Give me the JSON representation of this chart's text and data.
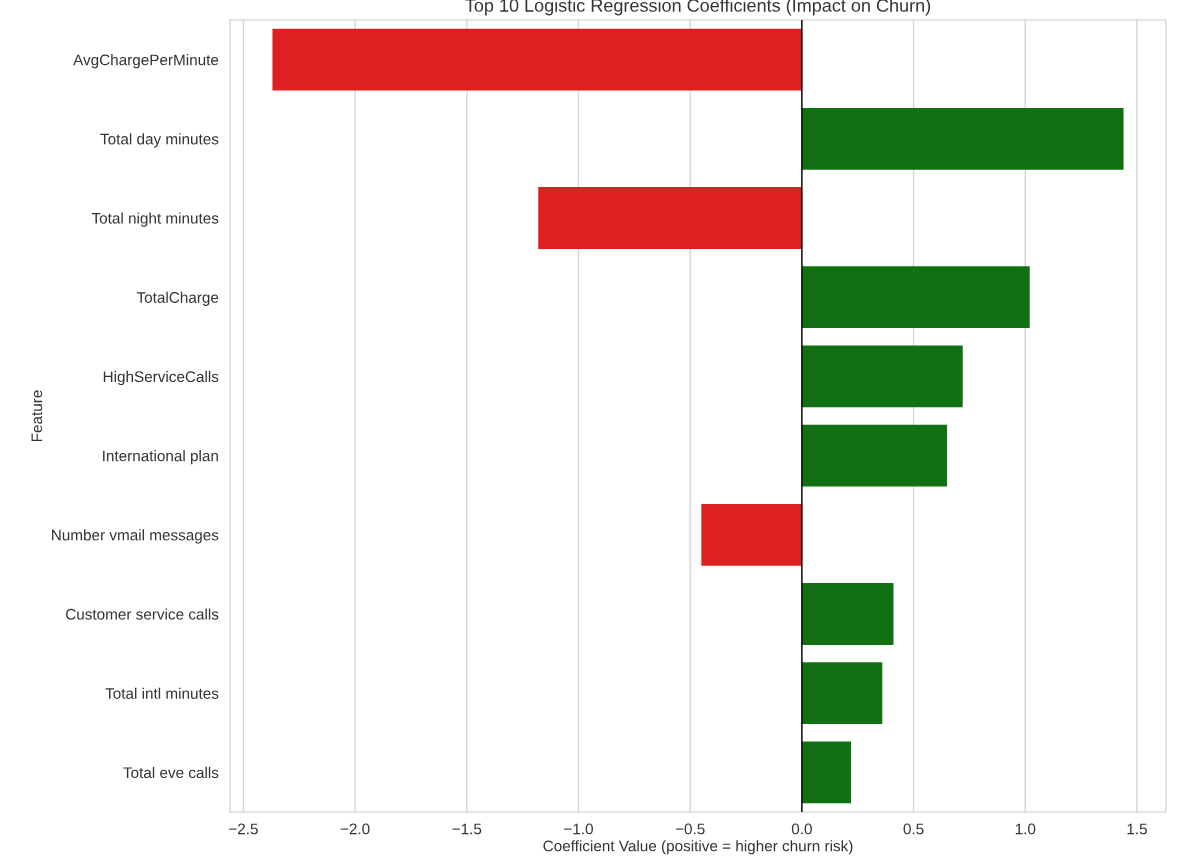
{
  "chart_data": {
    "type": "bar",
    "orientation": "horizontal",
    "title": "Top 10 Logistic Regression Coefficients (Impact on Churn)",
    "xlabel": "Coefficient Value (positive = higher churn risk)",
    "ylabel": "Feature",
    "categories": [
      "AvgChargePerMinute",
      "Total day minutes",
      "Total night minutes",
      "TotalCharge",
      "HighServiceCalls",
      "International plan",
      "Number vmail messages",
      "Customer service calls",
      "Total intl minutes",
      "Total eve calls"
    ],
    "values": [
      -2.37,
      1.44,
      -1.18,
      1.02,
      0.72,
      0.65,
      -0.45,
      0.41,
      0.36,
      0.22
    ],
    "colors": [
      "#de2020",
      "#117011",
      "#de2020",
      "#117011",
      "#117011",
      "#117011",
      "#de2020",
      "#117011",
      "#117011",
      "#117011"
    ],
    "xlim": [
      -2.56,
      1.63
    ],
    "xticks": [
      {
        "value": -2.5,
        "label": "−2.5"
      },
      {
        "value": -2.0,
        "label": "−2.0"
      },
      {
        "value": -1.5,
        "label": "−1.5"
      },
      {
        "value": -1.0,
        "label": "−1.0"
      },
      {
        "value": -0.5,
        "label": "−0.5"
      },
      {
        "value": 0.0,
        "label": "0.0"
      },
      {
        "value": 0.5,
        "label": "0.5"
      },
      {
        "value": 1.0,
        "label": "1.0"
      },
      {
        "value": 1.5,
        "label": "1.5"
      }
    ],
    "ref_lines": [
      {
        "axis": "x",
        "value": 0,
        "color": "#000000"
      }
    ],
    "grid": "x"
  }
}
